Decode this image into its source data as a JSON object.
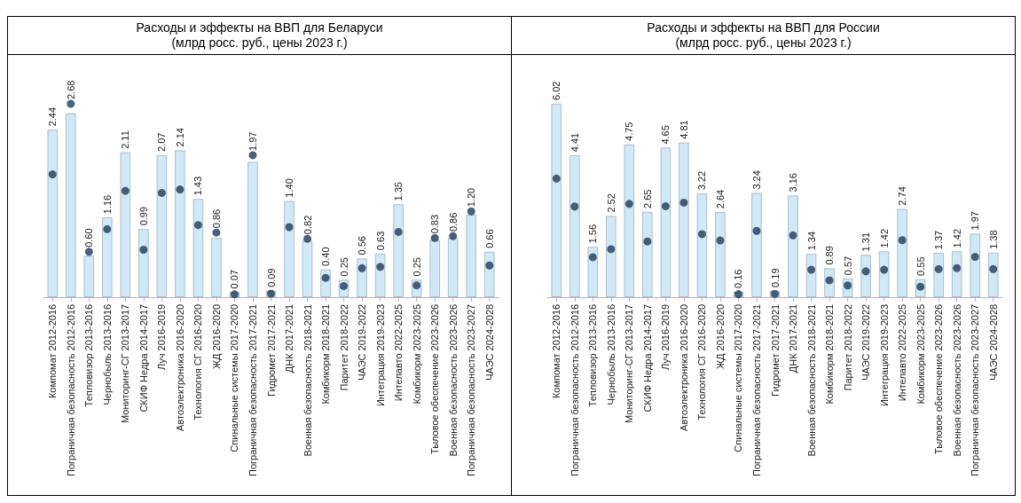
{
  "chart_data": [
    {
      "type": "bar",
      "title": "Расходы и эффекты на ВВП для Беларуси\n(млрд росс. руб., цены 2023 г.)",
      "categories": [
        "Компомат 2012-2016",
        "Пограничная безопасность 2012-2016",
        "Тепловизор 2013-2016",
        "Чернобыль 2013-2016",
        "Мониторинг-СГ 2013-2017",
        "СКИФ Недра 2014-2017",
        "Луч 2016-2019",
        "Автоэлектроника 2016-2020",
        "Технология СГ 2016-2020",
        "ЖД 2016-2020",
        "Спинальные системы 2017-2020",
        "Пограничная безопасность 2017-2021",
        "Гидромет 2017-2021",
        "ДНК 2017-2021",
        "Военная безопасность 2018-2021",
        "Комбикорм 2018-2021",
        "Паритет 2018-2022",
        "ЧАЭС 2019-2022",
        "Интеграция 2019-2023",
        "Интелавто 2022-2025",
        "Комбикорм 2023-2025",
        "Тыловое обеспечение 2023-2026",
        "Военная безопасность 2023-2026",
        "Пограничная безопасность 2023-2027",
        "ЧАЭС 2024-2028"
      ],
      "series": [
        {
          "color": "#cfe9f9",
          "values": [
            2.44,
            2.68,
            0.6,
            1.16,
            2.11,
            0.99,
            2.07,
            2.14,
            1.43,
            0.86,
            0.07,
            1.97,
            0.09,
            1.4,
            0.82,
            0.4,
            0.25,
            0.56,
            0.63,
            1.35,
            0.25,
            0.83,
            0.86,
            1.2,
            0.66
          ],
          "value_labels": [
            "2.44",
            "2.68",
            "0.60",
            "1.16",
            "2.11",
            "0.99",
            "2.07",
            "2.14",
            "1.43",
            "0.86",
            "0.07",
            "1.97",
            "0.09",
            "1.40",
            "0.82",
            "0.40",
            "0.25",
            "0.56",
            "0.63",
            "1.35",
            "0.25",
            "0.83",
            "0.86",
            "1.20",
            "0.66"
          ]
        },
        {
          "type": "scatter",
          "color": "#1d3a57",
          "values": [
            1.79,
            2.82,
            0.66,
            0.99,
            1.55,
            0.69,
            1.52,
            1.57,
            1.05,
            0.94,
            0.04,
            2.07,
            0.05,
            1.02,
            0.85,
            0.28,
            0.16,
            0.42,
            0.44,
            0.95,
            0.17,
            0.86,
            0.89,
            1.25,
            0.46
          ]
        }
      ],
      "marker": "circle",
      "grid": false
    },
    {
      "type": "bar",
      "title": "Расходы и эффекты на ВВП для России\n(млрд росс. руб., цены 2023 г.)",
      "categories": [
        "Компомат 2012-2016",
        "Пограничная безопасность 2012-2016",
        "Тепловизор 2013-2016",
        "Чернобыль 2013-2016",
        "Мониторинг-СГ 2013-2017",
        "СКИФ Недра 2014-2017",
        "Луч 2016-2019",
        "Автоэлектроника 2016-2020",
        "Технология СГ 2016-2020",
        "ЖД 2016-2020",
        "Спинальные системы 2017-2020",
        "Пограничная безопасность 2017-2021",
        "Гидромет 2017-2021",
        "ДНК 2017-2021",
        "Военная безопасность 2018-2021",
        "Комбикорм 2018-2021",
        "Паритет 2018-2022",
        "ЧАЭС 2019-2022",
        "Интеграция 2019-2023",
        "Интелавто 2022-2025",
        "Комбикорм 2023-2025",
        "Тыловое обеспечение 2023-2026",
        "Военная безопасность 2023-2026",
        "Пограничная безопасность 2023-2027",
        "ЧАЭС 2024-2028"
      ],
      "series": [
        {
          "color": "#cfe9f9",
          "values": [
            6.02,
            4.41,
            1.56,
            2.52,
            4.75,
            2.65,
            4.65,
            4.81,
            3.22,
            2.64,
            0.16,
            3.24,
            0.19,
            3.16,
            1.34,
            0.89,
            0.57,
            1.31,
            1.42,
            2.74,
            0.55,
            1.37,
            1.42,
            1.97,
            1.38
          ],
          "value_labels": [
            "6.02",
            "4.41",
            "1.56",
            "2.52",
            "4.75",
            "2.65",
            "4.65",
            "4.81",
            "3.22",
            "2.64",
            "0.16",
            "3.24",
            "0.19",
            "3.16",
            "1.34",
            "0.89",
            "0.57",
            "1.31",
            "1.42",
            "2.74",
            "0.55",
            "1.37",
            "1.42",
            "1.97",
            "1.38"
          ]
        },
        {
          "type": "scatter",
          "color": "#1d3a57",
          "values": [
            3.69,
            2.82,
            1.24,
            1.49,
            2.9,
            1.73,
            2.83,
            2.94,
            1.96,
            1.76,
            0.09,
            2.06,
            0.1,
            1.92,
            0.85,
            0.52,
            0.36,
            0.8,
            0.85,
            1.77,
            0.32,
            0.87,
            0.9,
            1.25,
            0.87
          ]
        }
      ],
      "marker": "circle",
      "grid": false
    }
  ]
}
